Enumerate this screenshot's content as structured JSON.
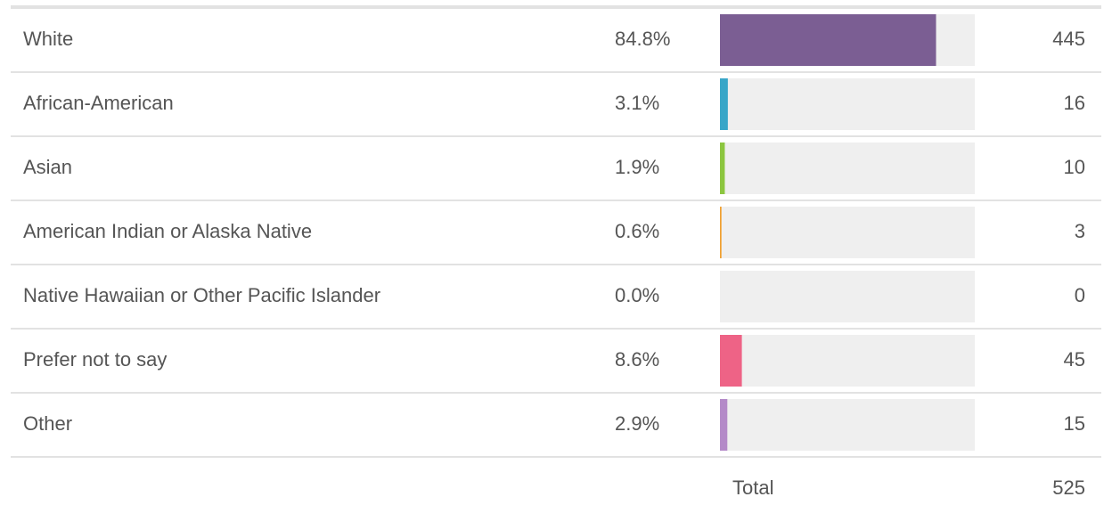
{
  "rows": [
    {
      "label": "White",
      "percent": 84.8,
      "percent_label": "84.8%",
      "count": 445,
      "color": "#7b5e93"
    },
    {
      "label": "African-American",
      "percent": 3.1,
      "percent_label": "3.1%",
      "count": 16,
      "color": "#38a6c8"
    },
    {
      "label": "Asian",
      "percent": 1.9,
      "percent_label": "1.9%",
      "count": 10,
      "color": "#8cc63f"
    },
    {
      "label": "American Indian or Alaska Native",
      "percent": 0.6,
      "percent_label": "0.6%",
      "count": 3,
      "color": "#f0a030"
    },
    {
      "label": "Native Hawaiian or Other Pacific Islander",
      "percent": 0.0,
      "percent_label": "0.0%",
      "count": 0,
      "color": "#999999"
    },
    {
      "label": "Prefer not to say",
      "percent": 8.6,
      "percent_label": "8.6%",
      "count": 45,
      "color": "#ee6386"
    },
    {
      "label": "Other",
      "percent": 2.9,
      "percent_label": "2.9%",
      "count": 15,
      "color": "#b48ac8"
    }
  ],
  "percent_range": [
    0,
    100
  ],
  "total": {
    "label": "Total",
    "value": 525
  }
}
